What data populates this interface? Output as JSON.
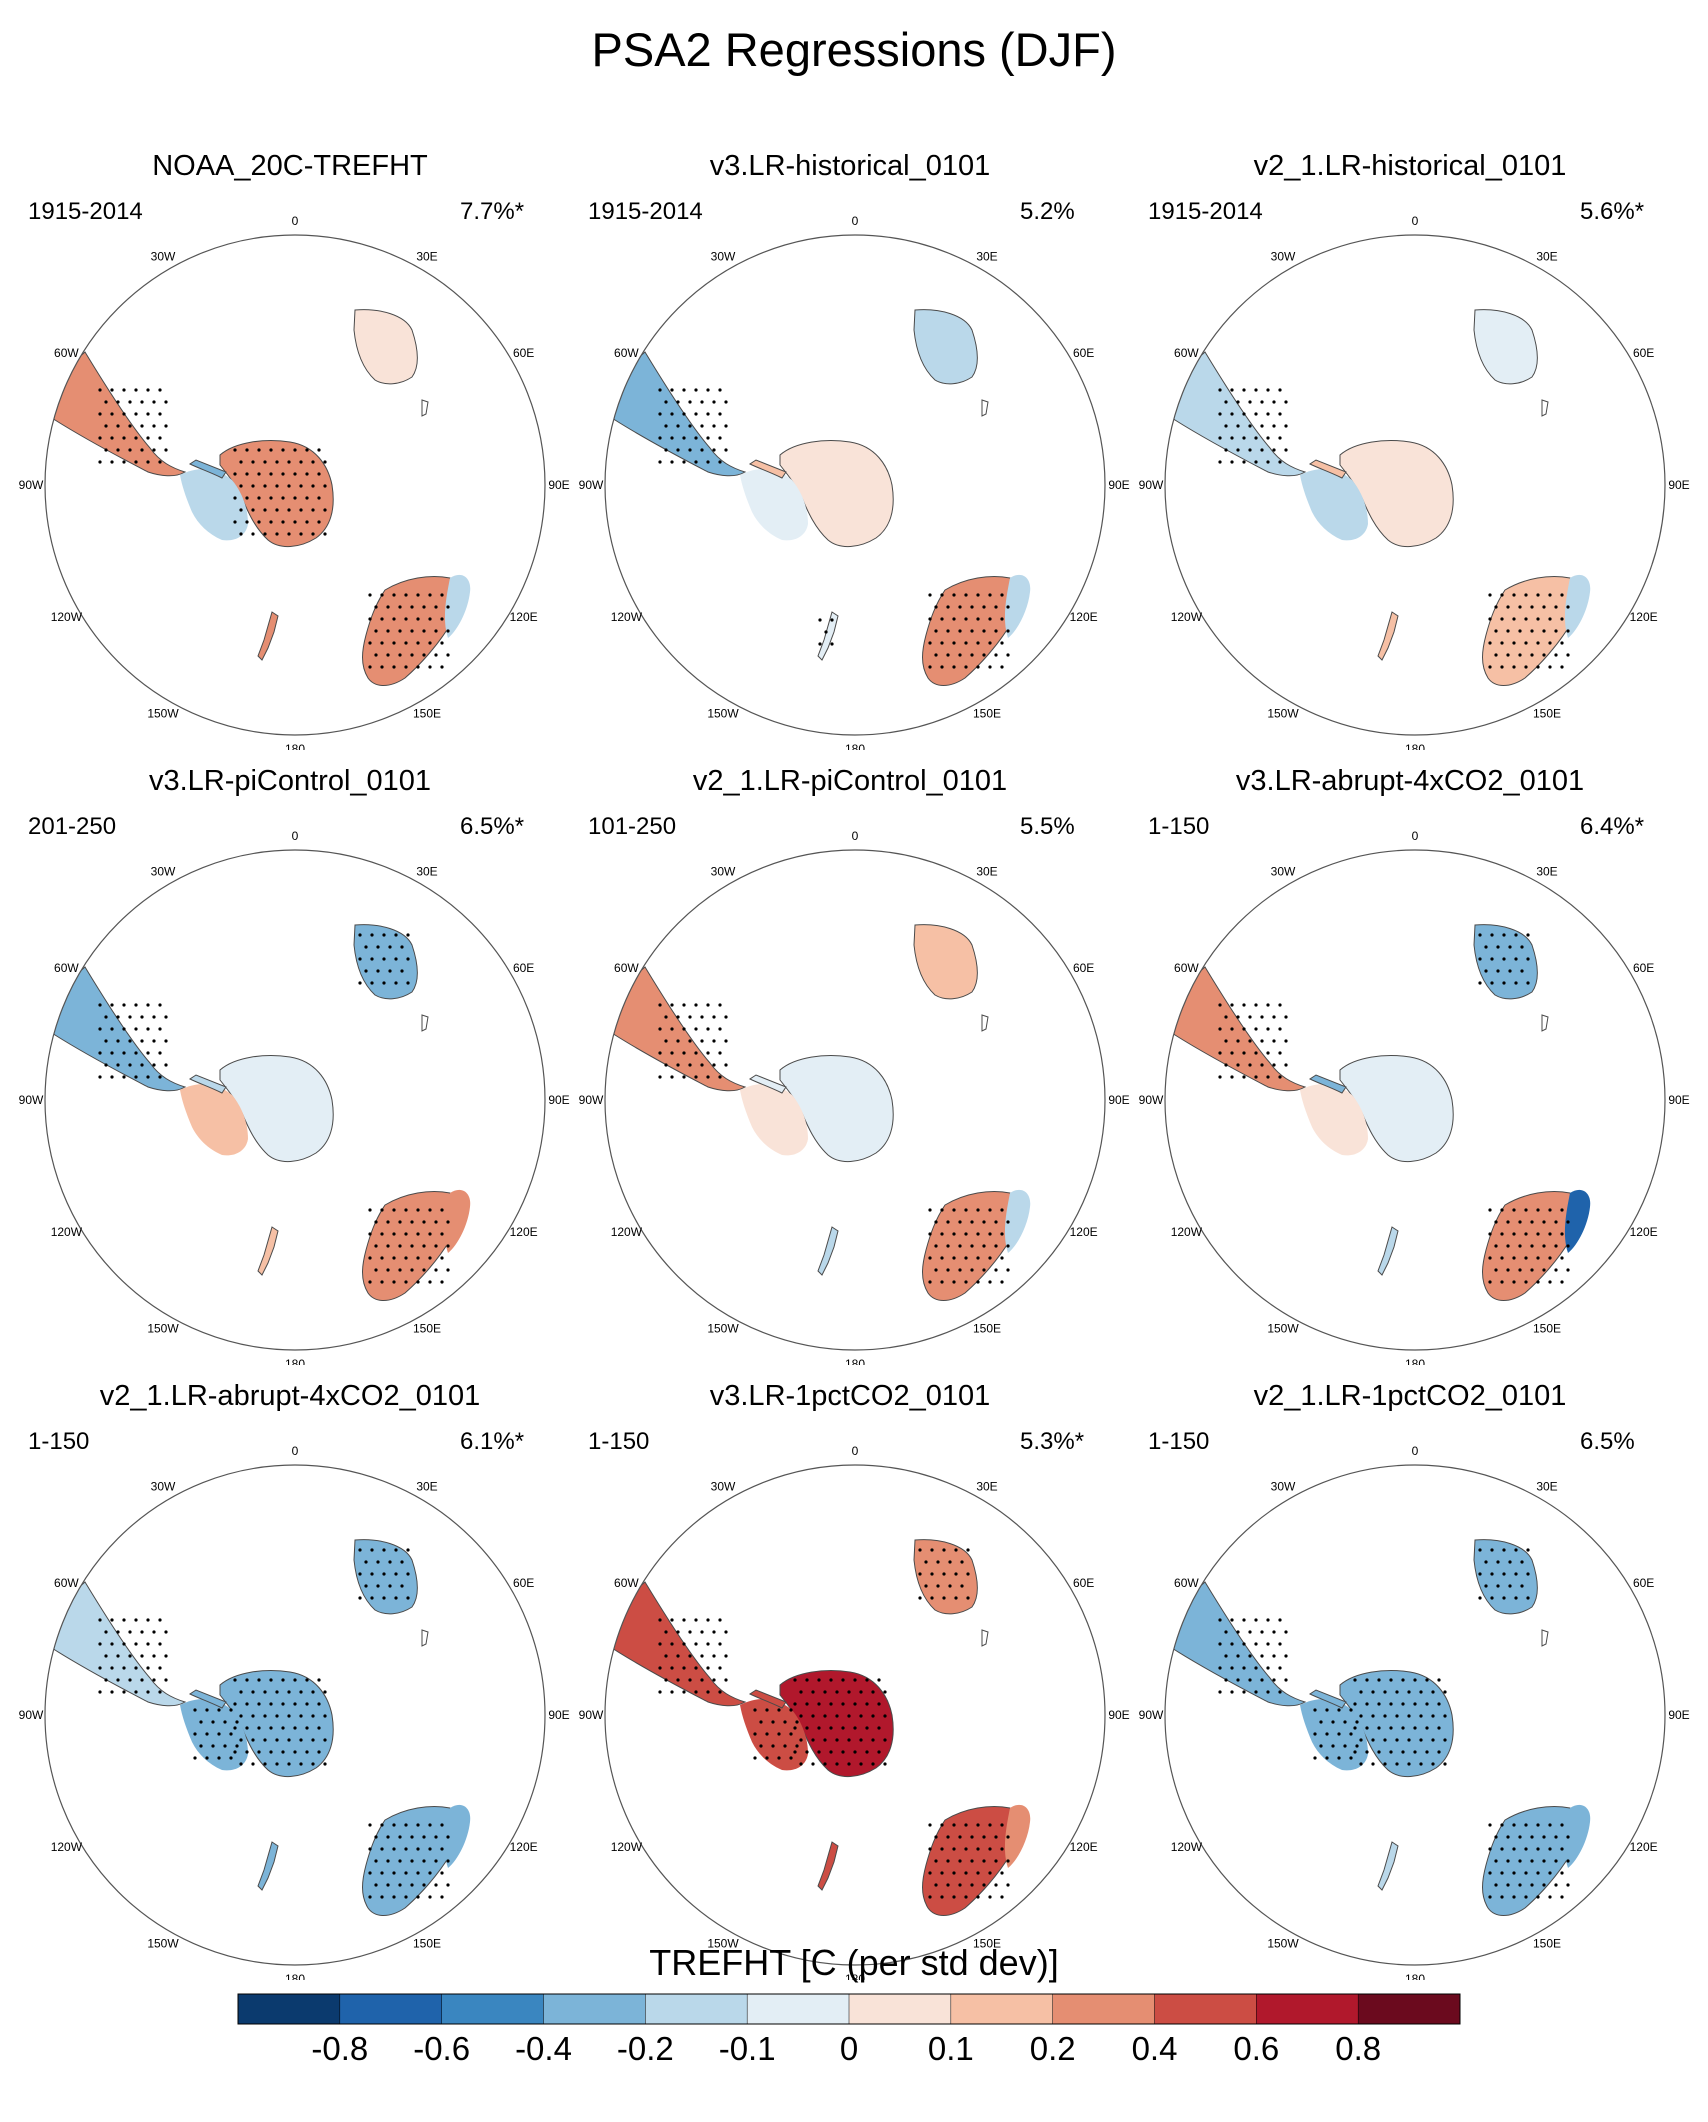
{
  "title": "PSA2 Regressions (DJF)",
  "colors": {
    "coast": "#4a4a4a",
    "stipple": "#000000",
    "levels": [
      "#0b3a6e",
      "#1f63ab",
      "#3a86c0",
      "#7cb4d8",
      "#bad8ea",
      "#e3eef5",
      "#f9e3d8",
      "#f6c0a5",
      "#e58e72",
      "#cc4d44",
      "#b1182c",
      "#6b0a1e"
    ]
  },
  "lon_labels": [
    "0",
    "30E",
    "60E",
    "90E",
    "120E",
    "150E",
    "180",
    "150W",
    "120W",
    "90W",
    "60W",
    "30W"
  ],
  "chart_data": {
    "type": "polar_map_panels",
    "variable": "TREFHT [C (per std dev)]",
    "colorbar": {
      "labels": [
        "-0.8",
        "-0.6",
        "-0.4",
        "-0.2",
        "-0.1",
        "0",
        "0.1",
        "0.2",
        "0.4",
        "0.6",
        "0.8"
      ],
      "boundaries": [
        -0.8,
        -0.6,
        -0.4,
        -0.2,
        -0.1,
        0,
        0.1,
        0.2,
        0.4,
        0.6,
        0.8
      ],
      "ncolors": 12
    },
    "panels": [
      {
        "name": "NOAA_20C-TREFHT",
        "period": "1915-2014",
        "pct": "7.7%*",
        "fields": {
          "ant_e": 0.3,
          "ant_w": -0.15,
          "amp": -0.25,
          "sam": 0.25,
          "afr": 0.05,
          "aus": 0.2,
          "aus_n": -0.15,
          "nz": 0.2
        },
        "stip": {
          "ant_e": true,
          "ant_w": false,
          "sam": true,
          "afr": false,
          "aus": true,
          "nz": false
        }
      },
      {
        "name": "v3.LR-historical_0101",
        "period": "1915-2014",
        "pct": "5.2%",
        "fields": {
          "ant_e": 0.05,
          "ant_w": -0.05,
          "amp": 0.1,
          "sam": -0.3,
          "afr": -0.15,
          "aus": 0.2,
          "aus_n": -0.15,
          "nz": -0.05
        },
        "stip": {
          "ant_e": false,
          "ant_w": false,
          "sam": true,
          "afr": false,
          "aus": true,
          "nz": true
        }
      },
      {
        "name": "v2_1.LR-historical_0101",
        "period": "1915-2014",
        "pct": "5.6%*",
        "fields": {
          "ant_e": 0.05,
          "ant_w": -0.15,
          "amp": 0.1,
          "sam": -0.2,
          "afr": -0.05,
          "aus": 0.1,
          "aus_n": -0.15,
          "nz": 0.15
        },
        "stip": {
          "ant_e": false,
          "ant_w": false,
          "sam": true,
          "afr": false,
          "aus": true,
          "nz": false
        }
      },
      {
        "name": "v3.LR-piControl_0101",
        "period": "201-250",
        "pct": "6.5%*",
        "fields": {
          "ant_e": -0.05,
          "ant_w": 0.15,
          "amp": -0.15,
          "sam": -0.35,
          "afr": -0.3,
          "aus": 0.25,
          "aus_n": 0.3,
          "nz": 0.1
        },
        "stip": {
          "ant_e": false,
          "ant_w": false,
          "sam": true,
          "afr": true,
          "aus": true,
          "nz": false
        }
      },
      {
        "name": "v2_1.LR-piControl_0101",
        "period": "101-250",
        "pct": "5.5%",
        "fields": {
          "ant_e": -0.1,
          "ant_w": 0.05,
          "amp": -0.1,
          "sam": 0.25,
          "afr": 0.1,
          "aus": 0.35,
          "aus_n": -0.2,
          "nz": -0.2
        },
        "stip": {
          "ant_e": false,
          "ant_w": false,
          "sam": true,
          "afr": false,
          "aus": true,
          "nz": false
        }
      },
      {
        "name": "v3.LR-abrupt-4xCO2_0101",
        "period": "1-150",
        "pct": "6.4%*",
        "fields": {
          "ant_e": -0.05,
          "ant_w": 0.05,
          "amp": -0.3,
          "sam": 0.35,
          "afr": -0.35,
          "aus": 0.2,
          "aus_n": -0.7,
          "nz": -0.15
        },
        "stip": {
          "ant_e": false,
          "ant_w": false,
          "sam": true,
          "afr": true,
          "aus": true,
          "nz": false
        }
      },
      {
        "name": "v2_1.LR-abrupt-4xCO2_0101",
        "period": "1-150",
        "pct": "6.1%*",
        "fields": {
          "ant_e": -0.4,
          "ant_w": -0.35,
          "amp": -0.3,
          "sam": -0.2,
          "afr": -0.4,
          "aus": -0.35,
          "aus_n": -0.4,
          "nz": -0.35
        },
        "stip": {
          "ant_e": true,
          "ant_w": true,
          "sam": true,
          "afr": true,
          "aus": true,
          "nz": false
        }
      },
      {
        "name": "v3.LR-1pctCO2_0101",
        "period": "1-150",
        "pct": "5.3%*",
        "fields": {
          "ant_e": 0.65,
          "ant_w": 0.55,
          "amp": 0.4,
          "sam": 0.45,
          "afr": 0.3,
          "aus": 0.55,
          "aus_n": 0.35,
          "nz": 0.45
        },
        "stip": {
          "ant_e": true,
          "ant_w": true,
          "sam": true,
          "afr": true,
          "aus": true,
          "nz": false
        }
      },
      {
        "name": "v2_1.LR-1pctCO2_0101",
        "period": "1-150",
        "pct": "6.5%",
        "fields": {
          "ant_e": -0.35,
          "ant_w": -0.4,
          "amp": -0.3,
          "sam": -0.3,
          "afr": -0.4,
          "aus": -0.4,
          "aus_n": -0.25,
          "nz": -0.2
        },
        "stip": {
          "ant_e": true,
          "ant_w": true,
          "sam": true,
          "afr": true,
          "aus": true,
          "nz": false
        }
      }
    ]
  }
}
